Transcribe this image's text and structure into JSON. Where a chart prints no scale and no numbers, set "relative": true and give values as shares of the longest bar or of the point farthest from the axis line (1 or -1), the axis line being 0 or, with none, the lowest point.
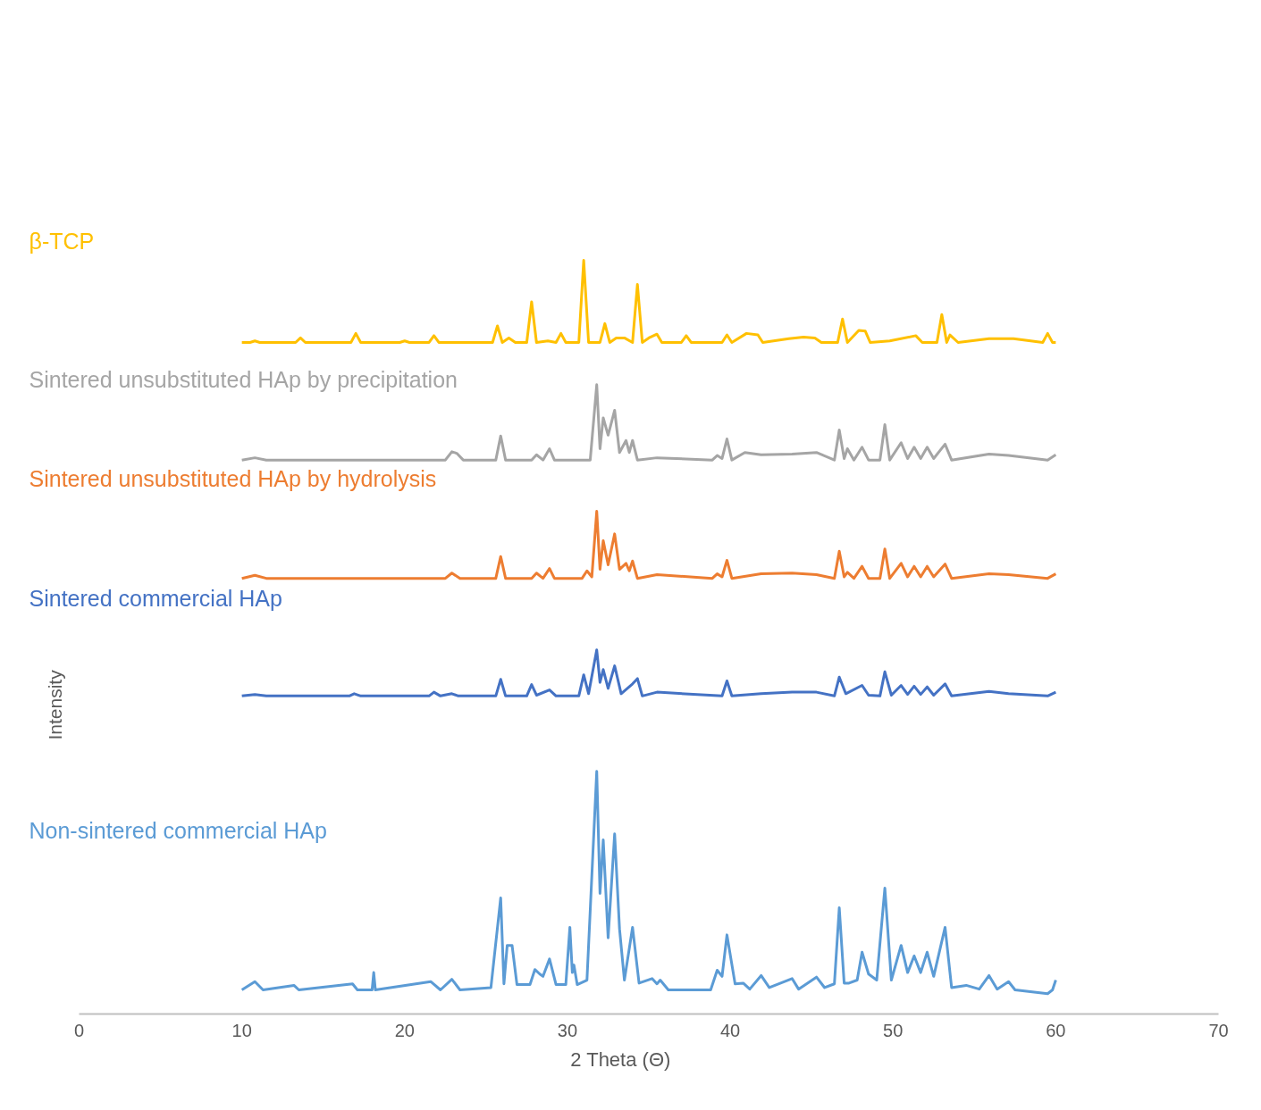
{
  "chart_data": {
    "type": "line",
    "relative": true,
    "xlabel": "2 Theta (Θ)",
    "ylabel": "Intensity",
    "xlim": [
      0,
      70
    ],
    "xticks": [
      0,
      10,
      20,
      30,
      40,
      50,
      60,
      70
    ],
    "grid": false,
    "marker": "none",
    "line_style": "solid",
    "series": [
      {
        "name": "β-TCP",
        "color": "#ffc000",
        "x": [
          10,
          10.5,
          10.8,
          11.1,
          13.3,
          13.6,
          13.9,
          16.7,
          17,
          17.3,
          19.7,
          20,
          20.3,
          21.5,
          21.8,
          22.1,
          25.4,
          25.7,
          26,
          26.4,
          26.8,
          27.5,
          27.8,
          28.1,
          28.8,
          29.3,
          29.6,
          29.9,
          30.7,
          31,
          31.3,
          32,
          32.3,
          32.6,
          33,
          33.5,
          34,
          34.3,
          34.6,
          35,
          35.5,
          35.8,
          37,
          37.3,
          37.6,
          39.5,
          39.8,
          40.1,
          41,
          41.7,
          42,
          43.6,
          44.5,
          45.2,
          45.6,
          46.6,
          46.9,
          47.2,
          47.9,
          48.3,
          48.6,
          49.8,
          51.4,
          51.8,
          52.7,
          53,
          53.3,
          53.5,
          54,
          55.9,
          57.4,
          59.2,
          59.5,
          59.8,
          60
        ],
        "values": [
          0.891,
          0.891,
          0.893,
          0.891,
          0.891,
          0.897,
          0.891,
          0.891,
          0.903,
          0.891,
          0.891,
          0.893,
          0.891,
          0.891,
          0.9,
          0.891,
          0.891,
          0.913,
          0.891,
          0.897,
          0.891,
          0.891,
          0.945,
          0.891,
          0.893,
          0.891,
          0.903,
          0.891,
          0.891,
          1.0,
          0.891,
          0.891,
          0.916,
          0.891,
          0.897,
          0.897,
          0.891,
          0.968,
          0.891,
          0.897,
          0.902,
          0.891,
          0.891,
          0.9,
          0.891,
          0.891,
          0.901,
          0.891,
          0.903,
          0.901,
          0.891,
          0.896,
          0.898,
          0.897,
          0.891,
          0.891,
          0.922,
          0.891,
          0.907,
          0.906,
          0.891,
          0.893,
          0.9,
          0.891,
          0.891,
          0.928,
          0.891,
          0.901,
          0.891,
          0.896,
          0.896,
          0.891,
          0.903,
          0.891,
          0.891
        ]
      },
      {
        "name": "Sintered unsubstituted HAp by precipitation",
        "color": "#a5a5a5",
        "x": [
          10,
          10.8,
          11.5,
          22.5,
          22.9,
          23.2,
          23.6,
          25.6,
          25.9,
          26.2,
          27.8,
          28.1,
          28.5,
          28.9,
          29.2,
          31.4,
          31.8,
          32.0,
          32.2,
          32.5,
          32.9,
          33.2,
          33.6,
          33.8,
          34.0,
          34.3,
          35.5,
          38.9,
          39.2,
          39.5,
          39.8,
          40.1,
          40.9,
          41.9,
          43.8,
          45.3,
          46.4,
          46.7,
          47.0,
          47.2,
          47.6,
          48.1,
          48.5,
          49.2,
          49.5,
          49.8,
          50.5,
          50.9,
          51.3,
          51.7,
          52.1,
          52.5,
          53.2,
          53.6,
          55.9,
          57.1,
          59.5,
          60
        ],
        "values": [
          0.735,
          0.738,
          0.735,
          0.735,
          0.746,
          0.744,
          0.735,
          0.735,
          0.767,
          0.735,
          0.735,
          0.742,
          0.735,
          0.75,
          0.735,
          0.735,
          0.835,
          0.75,
          0.791,
          0.768,
          0.801,
          0.745,
          0.761,
          0.745,
          0.761,
          0.735,
          0.738,
          0.735,
          0.741,
          0.737,
          0.763,
          0.735,
          0.745,
          0.742,
          0.743,
          0.745,
          0.735,
          0.775,
          0.737,
          0.75,
          0.735,
          0.752,
          0.735,
          0.735,
          0.782,
          0.735,
          0.758,
          0.737,
          0.752,
          0.737,
          0.752,
          0.737,
          0.756,
          0.735,
          0.743,
          0.741,
          0.735,
          0.742
        ]
      },
      {
        "name": "Sintered unsubstituted HAp by hydrolysis",
        "color": "#ed7d31",
        "x": [
          10,
          10.8,
          11.5,
          22.5,
          22.9,
          23.4,
          25.6,
          25.9,
          26.2,
          27.8,
          28.1,
          28.5,
          28.9,
          29.2,
          30.9,
          31.2,
          31.5,
          31.8,
          32.0,
          32.2,
          32.5,
          32.9,
          33.2,
          33.6,
          33.8,
          34.0,
          34.3,
          35.5,
          38.9,
          39.2,
          39.5,
          39.8,
          40.1,
          41.9,
          43.8,
          45.3,
          46.4,
          46.7,
          47.0,
          47.2,
          47.6,
          48.1,
          48.5,
          49.2,
          49.5,
          49.8,
          50.5,
          50.9,
          51.3,
          51.7,
          52.1,
          52.5,
          53.2,
          53.6,
          55.9,
          57.1,
          59.5,
          60
        ],
        "values": [
          0.578,
          0.582,
          0.578,
          0.578,
          0.585,
          0.578,
          0.578,
          0.607,
          0.578,
          0.578,
          0.585,
          0.578,
          0.591,
          0.578,
          0.578,
          0.588,
          0.58,
          0.667,
          0.59,
          0.628,
          0.596,
          0.637,
          0.59,
          0.598,
          0.588,
          0.601,
          0.578,
          0.583,
          0.578,
          0.584,
          0.58,
          0.602,
          0.578,
          0.584,
          0.585,
          0.583,
          0.578,
          0.614,
          0.58,
          0.586,
          0.578,
          0.594,
          0.578,
          0.578,
          0.617,
          0.578,
          0.598,
          0.58,
          0.594,
          0.58,
          0.594,
          0.58,
          0.597,
          0.578,
          0.584,
          0.583,
          0.578,
          0.584
        ]
      },
      {
        "name": "Sintered commercial HAp",
        "color": "#4472c4",
        "x": [
          10,
          10.8,
          11.5,
          16.6,
          16.9,
          17.3,
          21.5,
          21.8,
          22.2,
          22.9,
          23.3,
          25.6,
          25.9,
          26.2,
          27.5,
          27.8,
          28.1,
          28.9,
          29.3,
          30.7,
          31.0,
          31.3,
          31.8,
          32.0,
          32.2,
          32.5,
          32.9,
          33.3,
          34.0,
          34.3,
          34.6,
          35.5,
          39.5,
          39.8,
          40.1,
          41.9,
          43.8,
          45.3,
          46.4,
          46.7,
          47.1,
          48.1,
          48.5,
          49.2,
          49.5,
          49.9,
          50.5,
          50.9,
          51.3,
          51.7,
          52.1,
          52.5,
          53.2,
          53.6,
          55.9,
          57.1,
          59.5,
          60
        ],
        "values": [
          0.422,
          0.424,
          0.422,
          0.422,
          0.425,
          0.422,
          0.422,
          0.427,
          0.422,
          0.425,
          0.422,
          0.422,
          0.444,
          0.422,
          0.422,
          0.437,
          0.423,
          0.43,
          0.422,
          0.422,
          0.45,
          0.425,
          0.483,
          0.44,
          0.457,
          0.432,
          0.462,
          0.425,
          0.438,
          0.445,
          0.422,
          0.427,
          0.422,
          0.442,
          0.422,
          0.425,
          0.427,
          0.427,
          0.422,
          0.447,
          0.425,
          0.436,
          0.423,
          0.422,
          0.454,
          0.423,
          0.436,
          0.424,
          0.435,
          0.424,
          0.434,
          0.423,
          0.438,
          0.422,
          0.428,
          0.425,
          0.422,
          0.427
        ]
      },
      {
        "name": "Non-sintered commercial HAp",
        "color": "#5b9bd5",
        "x": [
          10,
          10.8,
          11.3,
          13.2,
          13.5,
          16.8,
          17.1,
          18.0,
          18.1,
          18.2,
          21.6,
          22.2,
          22.9,
          23.4,
          25.3,
          25.9,
          26.1,
          26.3,
          26.6,
          26.9,
          27.7,
          28.0,
          28.3,
          28.5,
          28.9,
          29.3,
          29.9,
          30.15,
          30.3,
          30.4,
          30.6,
          31.2,
          31.8,
          32.0,
          32.2,
          32.5,
          32.9,
          33.2,
          33.5,
          34.0,
          34.4,
          35.2,
          35.5,
          35.7,
          36.2,
          38.8,
          39.2,
          39.5,
          39.8,
          40.3,
          40.8,
          41.2,
          41.9,
          42.4,
          43.8,
          44.2,
          45.3,
          45.8,
          46.4,
          46.7,
          47.0,
          47.3,
          47.8,
          48.1,
          48.5,
          49.0,
          49.5,
          49.9,
          50.5,
          50.9,
          51.3,
          51.7,
          52.1,
          52.5,
          53.2,
          53.6,
          54.5,
          55.3,
          55.9,
          56.4,
          57.1,
          57.5,
          59.5,
          59.8,
          60
        ],
        "values": [
          0.032,
          0.043,
          0.032,
          0.038,
          0.032,
          0.04,
          0.032,
          0.032,
          0.055,
          0.032,
          0.043,
          0.032,
          0.046,
          0.032,
          0.035,
          0.154,
          0.04,
          0.091,
          0.091,
          0.039,
          0.039,
          0.059,
          0.053,
          0.05,
          0.073,
          0.039,
          0.039,
          0.115,
          0.055,
          0.065,
          0.039,
          0.045,
          0.322,
          0.16,
          0.231,
          0.101,
          0.239,
          0.113,
          0.045,
          0.115,
          0.041,
          0.047,
          0.04,
          0.045,
          0.032,
          0.032,
          0.058,
          0.05,
          0.105,
          0.04,
          0.041,
          0.033,
          0.051,
          0.035,
          0.047,
          0.033,
          0.049,
          0.035,
          0.04,
          0.141,
          0.041,
          0.041,
          0.045,
          0.082,
          0.053,
          0.045,
          0.167,
          0.045,
          0.091,
          0.055,
          0.077,
          0.055,
          0.082,
          0.05,
          0.115,
          0.035,
          0.038,
          0.033,
          0.051,
          0.033,
          0.043,
          0.032,
          0.027,
          0.032,
          0.045
        ]
      }
    ]
  }
}
